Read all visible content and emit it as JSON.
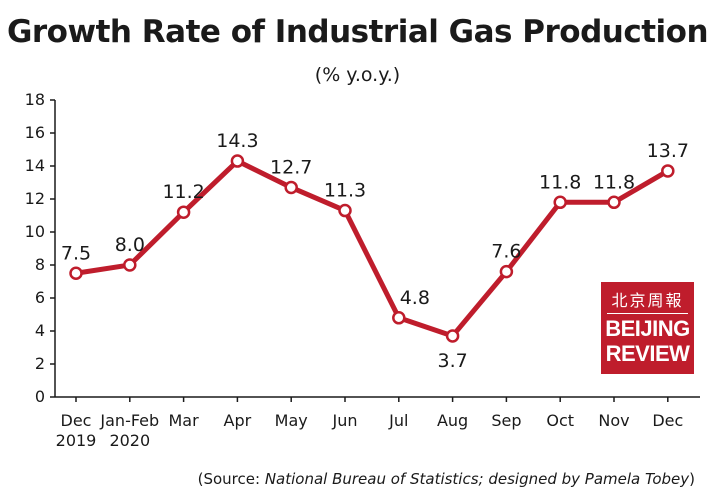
{
  "title": "Growth Rate of Industrial Gas Production",
  "subtitle": "(% y.o.y.)",
  "source": {
    "prefix": "(Source: ",
    "org": "National Bureau of Statistics; designed by Pamela Tobey",
    "suffix": ")"
  },
  "logo": {
    "chinese": "北京周報",
    "line1": "BEIJING",
    "line2": "REVIEW"
  },
  "colors": {
    "series": "#bf1d2c",
    "axis": "#1a1a1a",
    "logo_bg": "#bf1d2c"
  },
  "chart_data": {
    "type": "line",
    "categories": [
      "Dec\n2019",
      "Jan-Feb\n2020",
      "Mar",
      "Apr",
      "May",
      "Jun",
      "Jul",
      "Aug",
      "Sep",
      "Oct",
      "Nov",
      "Dec"
    ],
    "series": [
      {
        "values": [
          7.5,
          8.0,
          11.2,
          14.3,
          12.7,
          11.3,
          4.8,
          3.7,
          7.6,
          11.8,
          11.8,
          13.7
        ]
      }
    ],
    "labels": [
      "7.5",
      "8.0",
      "11.2",
      "14.3",
      "12.7",
      "11.3",
      "4.8",
      "3.7",
      "7.6",
      "11.8",
      "11.8",
      "13.7"
    ],
    "yticks": [
      0,
      2,
      4,
      6,
      8,
      10,
      12,
      14,
      16,
      18
    ],
    "ylim": [
      0,
      18
    ],
    "grid": false,
    "legend": "none"
  }
}
